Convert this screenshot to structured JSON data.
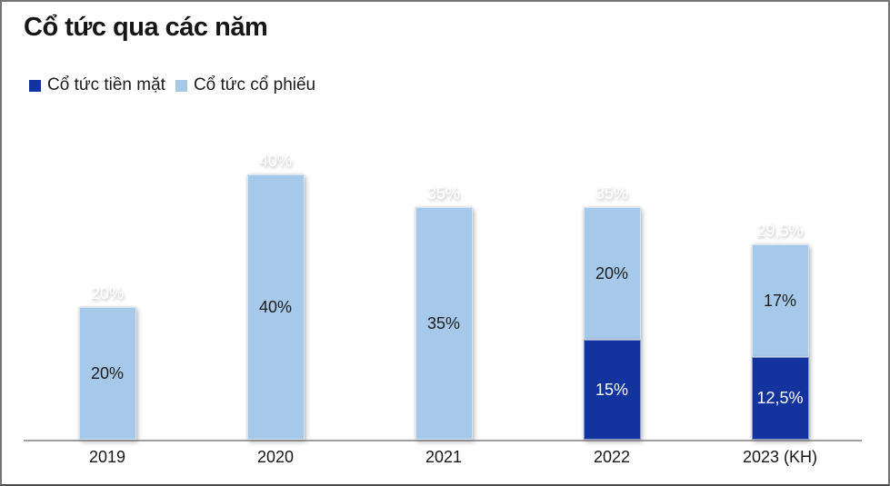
{
  "page": {
    "background": "#ffffff",
    "border_color": "#757575"
  },
  "title": "Cổ tức qua các năm",
  "legend": [
    {
      "label": "Cổ tức tiền mặt",
      "color": "#13349e"
    },
    {
      "label": "Cổ tức cổ phiếu",
      "color": "#a6c9e9"
    }
  ],
  "chart_data": {
    "type": "bar",
    "stacked": true,
    "title": "Cổ tức qua các năm",
    "categories": [
      "2019",
      "2020",
      "2021",
      "2022",
      "2023 (KH)"
    ],
    "series": [
      {
        "name": "Cổ tức tiền mặt",
        "color": "#13349e",
        "label_color": "#ffffff",
        "values": [
          0,
          0,
          0,
          15,
          12.5
        ],
        "labels": [
          "",
          "",
          "",
          "15%",
          "12,5%"
        ]
      },
      {
        "name": "Cổ tức cổ phiếu",
        "color": "#a6c9e9",
        "label_color": "#1c1c1c",
        "values": [
          20,
          40,
          35,
          20,
          17
        ],
        "labels": [
          "20%",
          "40%",
          "35%",
          "20%",
          "17%"
        ]
      }
    ],
    "totals": [
      20,
      40,
      35,
      35,
      29.5
    ],
    "total_labels": [
      "20%",
      "40%",
      "35%",
      "35%",
      "29,5%"
    ],
    "unit": "percent",
    "ylim": [
      0,
      45
    ],
    "grid": false,
    "axis_color": "#a0a0a0",
    "legend_position": "top-left"
  }
}
